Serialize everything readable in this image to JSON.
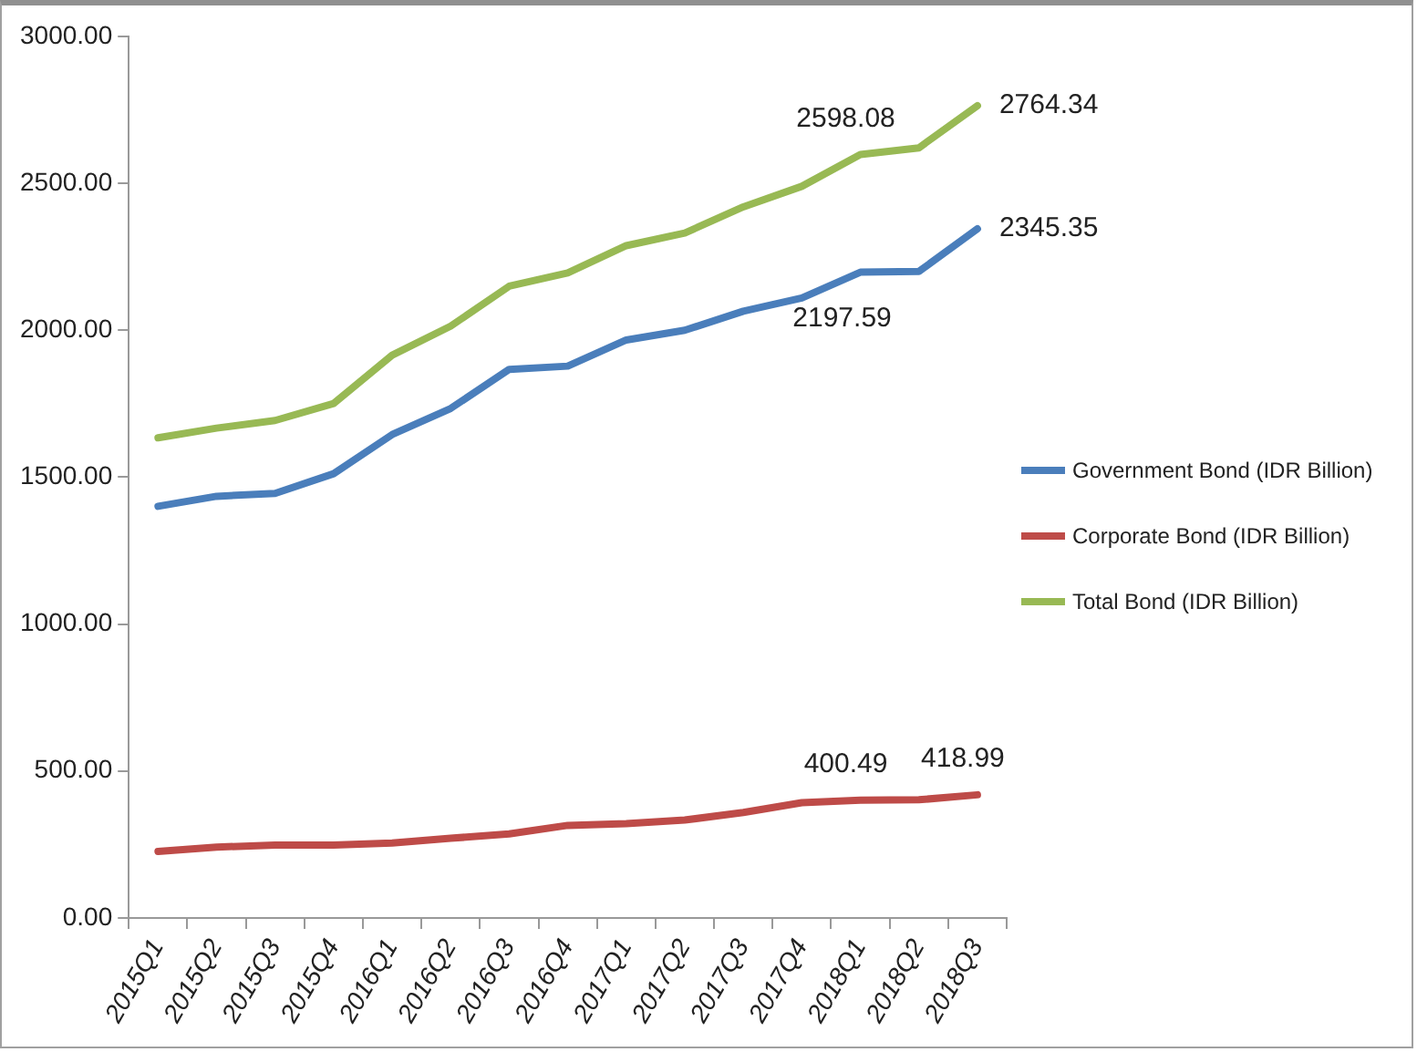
{
  "chart_data": {
    "type": "line",
    "categories": [
      "2015Q1",
      "2015Q2",
      "2015Q3",
      "2015Q4",
      "2016Q1",
      "2016Q2",
      "2016Q3",
      "2016Q4",
      "2017Q1",
      "2017Q2",
      "2017Q3",
      "2017Q4",
      "2018Q1",
      "2018Q2",
      "2018Q3"
    ],
    "series": [
      {
        "name": "Government Bond (IDR Billion)",
        "color": "#4a7ebb",
        "values": [
          1401,
          1435,
          1445,
          1512,
          1645,
          1734,
          1867,
          1878,
          1967,
          2000,
          2065,
          2110,
          2197.59,
          2200,
          2345.35
        ],
        "value_labels": [
          null,
          null,
          null,
          null,
          null,
          null,
          null,
          null,
          null,
          null,
          null,
          null,
          "2197.59",
          null,
          "2345.35"
        ]
      },
      {
        "name": "Corporate Bond (IDR Billion)",
        "color": "#be4b48",
        "values": [
          226,
          241,
          248,
          248,
          255,
          271,
          286,
          315,
          321,
          333,
          359,
          392,
          400.49,
          402,
          418.99
        ],
        "value_labels": [
          null,
          null,
          null,
          null,
          null,
          null,
          null,
          null,
          null,
          null,
          null,
          null,
          "400.49",
          null,
          "418.99"
        ]
      },
      {
        "name": "Total Bond (IDR Billion)",
        "color": "#98b954",
        "values": [
          1634,
          1667,
          1693,
          1751,
          1915,
          2014,
          2150,
          2195,
          2288,
          2331,
          2420,
          2490,
          2598.08,
          2621,
          2764.34
        ],
        "value_labels": [
          null,
          null,
          null,
          null,
          null,
          null,
          null,
          null,
          null,
          null,
          null,
          null,
          "2598.08",
          null,
          "2764.34"
        ]
      }
    ],
    "ylim": [
      0,
      3000
    ],
    "yticks": [
      {
        "value": 0,
        "label": "0.00"
      },
      {
        "value": 500,
        "label": "500.00"
      },
      {
        "value": 1000,
        "label": "1000.00"
      },
      {
        "value": 1500,
        "label": "1500.00"
      },
      {
        "value": 2000,
        "label": "2000.00"
      },
      {
        "value": 2500,
        "label": "2500.00"
      },
      {
        "value": 3000,
        "label": "3000.00"
      }
    ],
    "grid": false,
    "legend": "right",
    "marker": "none",
    "line_style": "solid"
  }
}
